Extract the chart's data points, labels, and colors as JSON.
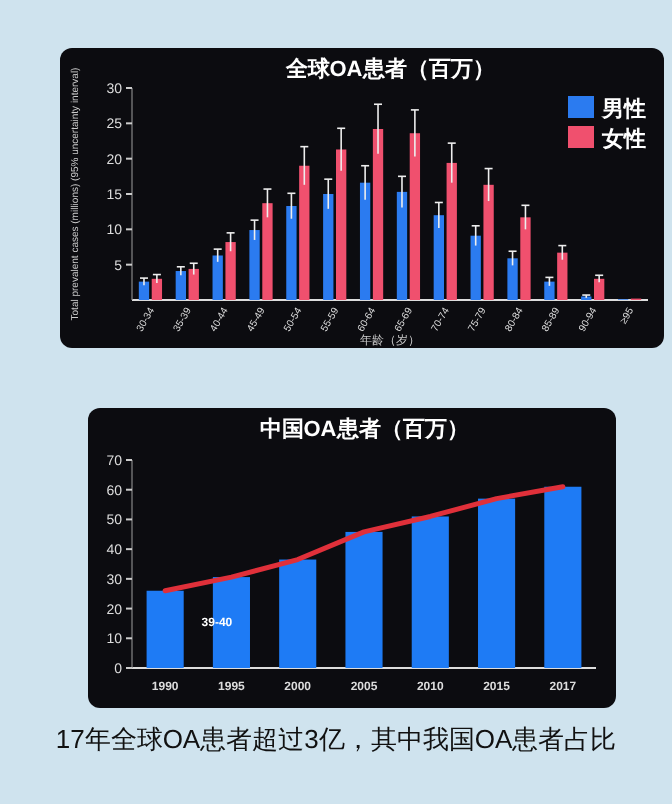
{
  "chart_data": [
    {
      "type": "bar",
      "title": "全球OA患者（百万）",
      "xlabel": "年龄（岁）",
      "ylabel": "Total prevalent cases (millions) (95% uncertainty interval)",
      "categories": [
        "30-34",
        "35-39",
        "40-44",
        "45-49",
        "50-54",
        "55-59",
        "60-64",
        "65-69",
        "70-74",
        "75-79",
        "80-84",
        "85-89",
        "90-94",
        "≥95"
      ],
      "ylim": [
        0,
        30
      ],
      "yticks": [
        5,
        10,
        15,
        20,
        25,
        30
      ],
      "legend": "top right",
      "series": [
        {
          "name": "男性",
          "color": "#2b7bf0",
          "values": [
            2.6,
            4.1,
            6.3,
            9.9,
            13.3,
            15.0,
            16.6,
            15.3,
            12.0,
            9.1,
            5.9,
            2.6,
            0.5,
            0.1
          ],
          "errors": [
            0.5,
            0.6,
            0.9,
            1.4,
            1.8,
            2.1,
            2.4,
            2.2,
            1.8,
            1.4,
            1.0,
            0.6,
            0.2,
            null
          ]
        },
        {
          "name": "女性",
          "color": "#f0506e",
          "values": [
            3.0,
            4.4,
            8.2,
            13.7,
            19.0,
            21.3,
            24.2,
            23.6,
            19.4,
            16.3,
            11.7,
            6.7,
            3.0,
            0.2
          ],
          "errors": [
            0.6,
            0.8,
            1.3,
            2.0,
            2.7,
            3.0,
            3.5,
            3.3,
            2.8,
            2.3,
            1.7,
            1.0,
            0.5,
            null
          ]
        }
      ]
    },
    {
      "type": "bar",
      "title": "中国OA患者（百万）",
      "categories": [
        "1990",
        "1995",
        "2000",
        "2005",
        "2010",
        "2015",
        "2017"
      ],
      "ylim": [
        0,
        70
      ],
      "yticks": [
        0,
        10,
        20,
        30,
        40,
        50,
        60,
        70
      ],
      "series": [
        {
          "color": "#1e7bf5",
          "values": [
            26,
            30.6,
            36.5,
            45.8,
            51,
            57,
            61
          ]
        },
        {
          "type": "line",
          "color": "#e0303a",
          "values": [
            26,
            30.6,
            36.5,
            45.8,
            51,
            57,
            61
          ]
        }
      ],
      "annotations": [
        "39-40",
        "17年全球OA患者超过3亿，其中我国OA患者占比"
      ]
    }
  ]
}
